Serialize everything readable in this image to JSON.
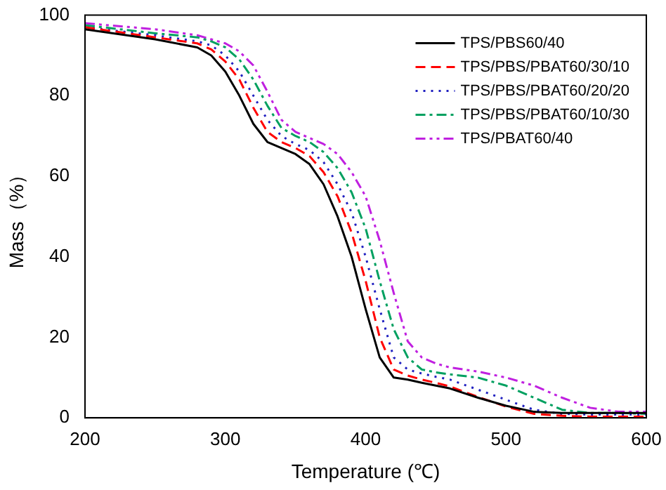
{
  "chart_data": {
    "type": "line",
    "xlabel": "Temperature (℃)",
    "ylabel": "Mass（%）",
    "xlim": [
      200,
      600
    ],
    "ylim": [
      0,
      100
    ],
    "xticks": [
      200,
      300,
      400,
      500,
      600
    ],
    "yticks": [
      0,
      20,
      40,
      60,
      80,
      100
    ],
    "grid": false,
    "legend": "top right",
    "marker": "none",
    "x": [
      200,
      250,
      280,
      290,
      300,
      310,
      320,
      330,
      340,
      350,
      360,
      370,
      380,
      390,
      400,
      410,
      420,
      430,
      440,
      450,
      460,
      480,
      500,
      520,
      540,
      560,
      580,
      600
    ],
    "series": [
      {
        "name": "TPS/PBS60/40",
        "color": "#000000",
        "line_style": "solid",
        "values": [
          96.5,
          94,
          92,
          90,
          86,
          80,
          73,
          68.5,
          67,
          65.5,
          63,
          58,
          50,
          40,
          27,
          15,
          10,
          9.5,
          8.7,
          8,
          7.3,
          5,
          3,
          1.5,
          1.2,
          1.2,
          1.2,
          1.2
        ]
      },
      {
        "name": "TPS/PBS/PBAT60/30/10",
        "color": "#ff0000",
        "line_style": "dashed",
        "values": [
          97,
          94.5,
          93,
          91.5,
          88.5,
          84,
          77,
          71,
          68.5,
          67,
          65,
          61,
          55,
          46,
          34,
          20,
          12,
          10.5,
          9.5,
          8.7,
          7.8,
          5.2,
          2.8,
          1,
          0.5,
          0.3,
          0.3,
          0.3
        ]
      },
      {
        "name": "TPS/PBS/PBAT60/20/20",
        "color": "#2020c0",
        "line_style": "dotted",
        "values": [
          97,
          95,
          93.5,
          92.5,
          90,
          86,
          80,
          74,
          70,
          68,
          66.5,
          63.5,
          58,
          51,
          40,
          27,
          15,
          12,
          11,
          10.2,
          9.5,
          7,
          4.5,
          2,
          1,
          0.8,
          0.8,
          0.8
        ]
      },
      {
        "name": "TPS/PBS/PBAT60/10/30",
        "color": "#00a060",
        "line_style": "dashdot",
        "values": [
          97.5,
          95.5,
          94.5,
          93.5,
          92,
          89,
          84,
          77.5,
          72,
          70,
          68.5,
          66,
          62,
          56,
          47,
          34,
          22,
          15,
          12,
          11.3,
          10.8,
          10,
          8,
          5,
          2,
          1.2,
          1.2,
          1
        ]
      },
      {
        "name": "TPS/PBAT60/40",
        "color": "#c020e0",
        "line_style": "dashdotdot",
        "values": [
          98,
          96.5,
          95,
          94,
          93,
          91,
          87.5,
          81,
          74,
          71,
          69.5,
          68,
          65.5,
          61,
          55,
          44,
          31,
          19,
          15,
          13.5,
          12.5,
          11.5,
          10,
          8,
          5,
          2.5,
          1.5,
          1.5
        ]
      }
    ]
  }
}
